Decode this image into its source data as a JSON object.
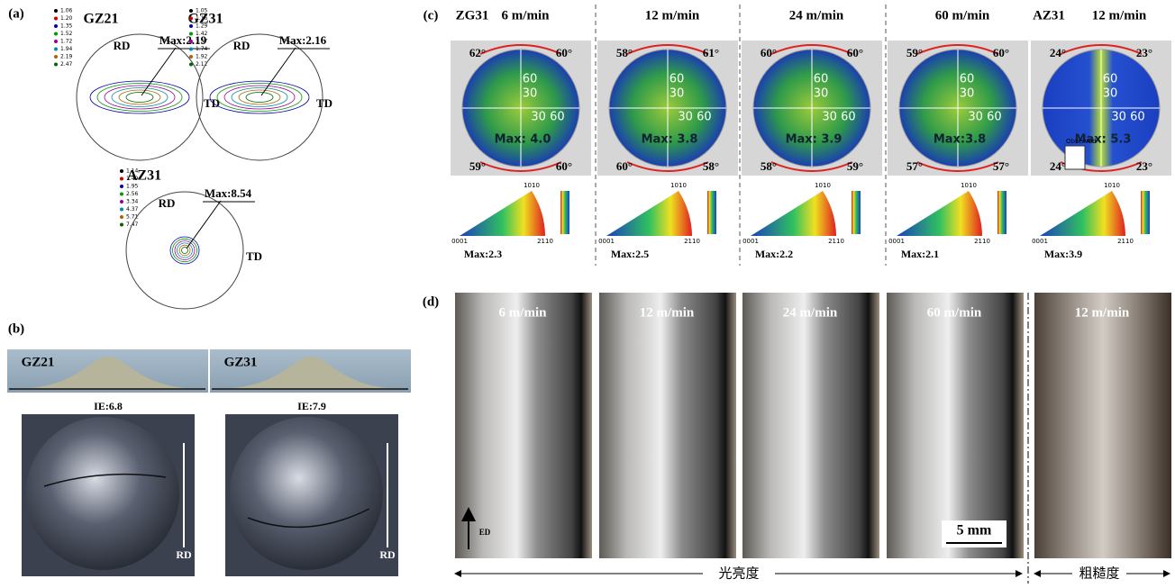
{
  "panel_a": {
    "label": "(a)",
    "figures": [
      {
        "name": "GZ21",
        "max": "Max:2.19",
        "rd": "RD",
        "td": "TD",
        "levels": [
          "1.06",
          "1.20",
          "1.35",
          "1.52",
          "1.72",
          "1.94",
          "2.19",
          "2.47"
        ]
      },
      {
        "name": "GZ31",
        "max": "Max:2.16",
        "rd": "RD",
        "td": "TD",
        "levels": [
          "1.05",
          "1.16",
          "1.29",
          "1.42",
          "1.57",
          "1.74",
          "1.92",
          "2.12"
        ]
      },
      {
        "name": "AZ31",
        "max": "Max:8.54",
        "rd": "RD",
        "td": "TD",
        "levels": [
          "1.14",
          "1.49",
          "1.95",
          "2.56",
          "3.34",
          "4.37",
          "5.71",
          "7.47"
        ]
      }
    ]
  },
  "panel_b": {
    "label": "(b)",
    "samples": [
      {
        "name": "GZ21",
        "ie": "IE:6.8",
        "rd": "RD"
      },
      {
        "name": "GZ31",
        "ie": "IE:7.9",
        "rd": "RD"
      }
    ]
  },
  "panel_c": {
    "label": "(c)",
    "pole_ticks": [
      "60",
      "30",
      "30 60"
    ],
    "ipf_corners": [
      "0001",
      "1010",
      "2110"
    ],
    "observed": "Observed",
    "columns": [
      {
        "alloy": "ZG31",
        "speed": "6 m/min",
        "angles": [
          "62°",
          "60°",
          "59°",
          "60°"
        ],
        "pf_max": "Max: 4.0",
        "ipf_max": "Max:2.3"
      },
      {
        "speed": "12 m/min",
        "angles": [
          "58°",
          "61°",
          "60°",
          "58°"
        ],
        "pf_max": "Max: 3.8",
        "ipf_max": "Max:2.5"
      },
      {
        "speed": "24 m/min",
        "angles": [
          "60°",
          "60°",
          "58°",
          "59°"
        ],
        "pf_max": "Max: 3.9",
        "ipf_max": "Max:2.2"
      },
      {
        "speed": "60 m/min",
        "angles": [
          "59°",
          "60°",
          "57°",
          "57°"
        ],
        "pf_max": "Max:3.8",
        "ipf_max": "Max:2.1"
      },
      {
        "alloy": "AZ31",
        "speed": "12 m/min",
        "angles": [
          "24°",
          "23°",
          "24°",
          "23°"
        ],
        "pf_max": "Max: 5.3",
        "ipf_max": "Max:3.9"
      }
    ]
  },
  "panel_d": {
    "label": "(d)",
    "speeds": [
      "6 m/min",
      "12 m/min",
      "24 m/min",
      "60 m/min",
      "12 m/min"
    ],
    "direction": "ED",
    "scale": "5 mm",
    "bright": "光亮度",
    "rough": "粗糙度"
  }
}
